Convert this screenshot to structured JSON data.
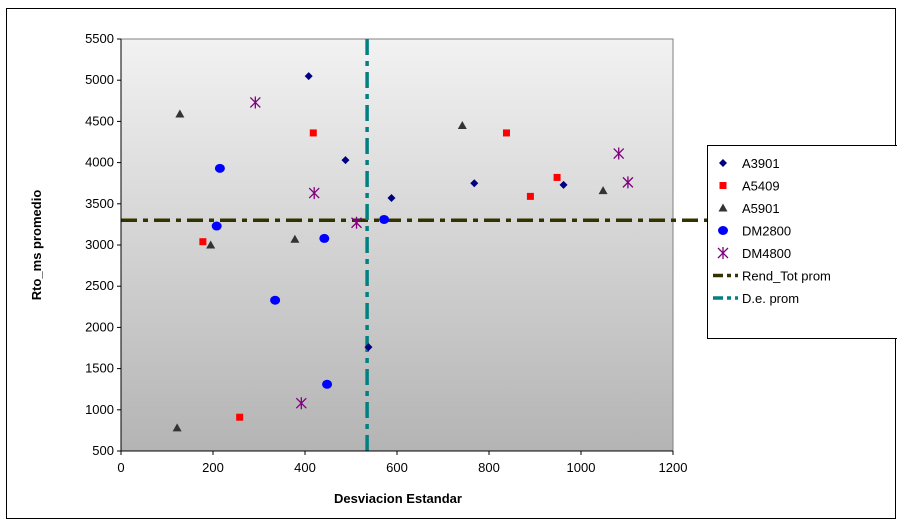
{
  "chart_data": {
    "type": "scatter",
    "title": "",
    "xlabel": "Desviacion Estandar",
    "ylabel": "Rto_ms promedio",
    "xlim": [
      0,
      1200
    ],
    "ylim": [
      500,
      5500
    ],
    "xticks": [
      0,
      200,
      400,
      600,
      800,
      1000,
      1200
    ],
    "yticks": [
      500,
      1000,
      1500,
      2000,
      2500,
      3000,
      3500,
      4000,
      4500,
      5000,
      5500
    ],
    "grid": false,
    "legend_position": "right",
    "series": [
      {
        "name": "A3901",
        "marker": "diamond",
        "color": "#000080",
        "points": [
          [
            408,
            5050
          ],
          [
            488,
            4030
          ],
          [
            588,
            3570
          ],
          [
            768,
            3750
          ],
          [
            962,
            3730
          ],
          [
            538,
            1760
          ]
        ]
      },
      {
        "name": "A5409",
        "marker": "square",
        "color": "#ff0000",
        "points": [
          [
            418,
            4360
          ],
          [
            838,
            4360
          ],
          [
            948,
            3820
          ],
          [
            890,
            3590
          ],
          [
            178,
            3040
          ],
          [
            258,
            910
          ]
        ]
      },
      {
        "name": "A5901",
        "marker": "triangle",
        "color": "#333333",
        "points": [
          [
            128,
            4590
          ],
          [
            742,
            4450
          ],
          [
            1048,
            3660
          ],
          [
            378,
            3070
          ],
          [
            195,
            3000
          ],
          [
            122,
            780
          ]
        ]
      },
      {
        "name": "DM2800",
        "marker": "circle",
        "color": "#0000ff",
        "points": [
          [
            215,
            3930
          ],
          [
            208,
            3230
          ],
          [
            442,
            3080
          ],
          [
            572,
            3310
          ],
          [
            335,
            2330
          ],
          [
            448,
            1310
          ]
        ]
      },
      {
        "name": "DM4800",
        "marker": "asterisk",
        "color": "#800080",
        "points": [
          [
            292,
            4730
          ],
          [
            420,
            3630
          ],
          [
            512,
            3270
          ],
          [
            1082,
            4110
          ],
          [
            1102,
            3760
          ],
          [
            392,
            1080
          ]
        ]
      }
    ],
    "reference_lines": [
      {
        "name": "Rend_Tot prom",
        "orientation": "horizontal",
        "value": 3300,
        "color": "#333300",
        "style": "dash-dot"
      },
      {
        "name": "D.e. prom",
        "orientation": "vertical",
        "value": 535,
        "color": "#008080",
        "style": "dash-dot"
      }
    ]
  }
}
